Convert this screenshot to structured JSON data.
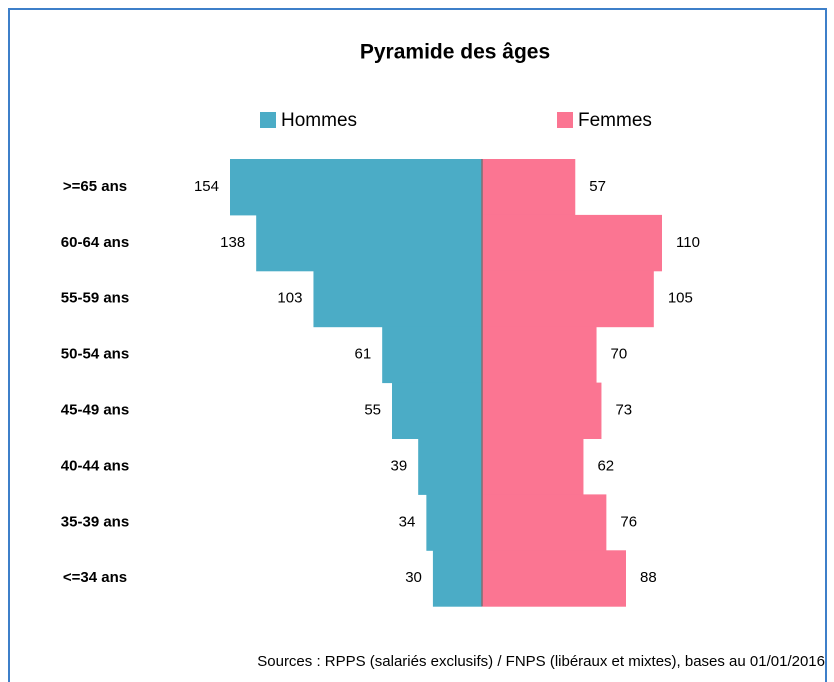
{
  "chart_data": {
    "type": "pyramid",
    "title": "Pyramide des âges",
    "categories": [
      ">=65 ans",
      "60-64 ans",
      "55-59 ans",
      "50-54 ans",
      "45-49 ans",
      "40-44 ans",
      "35-39 ans",
      "<=34 ans"
    ],
    "series": [
      {
        "name": "Hommes",
        "color": "#4bacc6",
        "values": [
          154,
          138,
          103,
          61,
          55,
          39,
          34,
          30
        ]
      },
      {
        "name": "Femmes",
        "color": "#fb7592",
        "values": [
          57,
          110,
          105,
          70,
          73,
          62,
          76,
          88
        ]
      }
    ],
    "source": "Sources : RPPS (salariés exclusifs) / FNPS (libéraux et mixtes), bases au 01/01/2016"
  }
}
